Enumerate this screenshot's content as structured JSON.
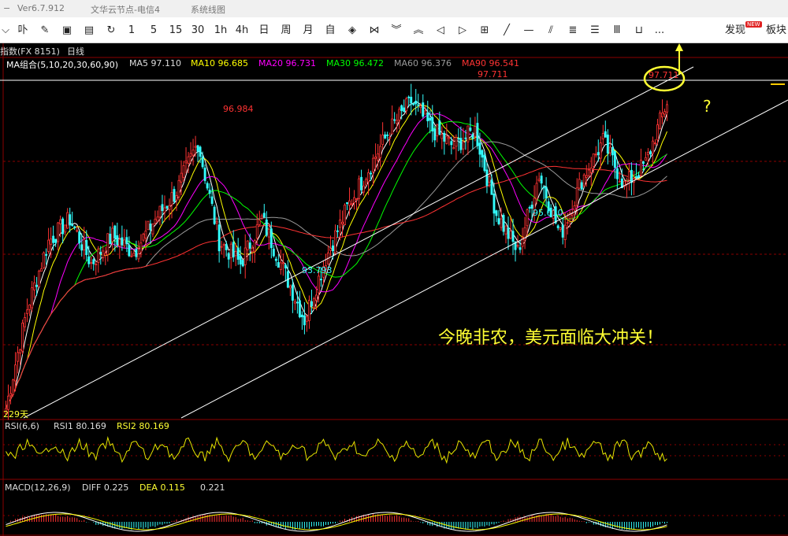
{
  "titlebar": {
    "version": "Ver6.7.912",
    "server": "文华云节点-电信4",
    "menu": "系统线图"
  },
  "toolbar": {
    "periods": [
      "1",
      "5",
      "15",
      "30",
      "1h",
      "4h",
      "日",
      "周",
      "月",
      "自"
    ],
    "discover": "发现",
    "new_badge": "NEW",
    "board": "板块",
    "more": "..."
  },
  "main_chart": {
    "symbol_label": "指数(FX 8151)",
    "period_label": "日线",
    "ma_title": "MA组合(5,10,20,30,60,90)",
    "ma": [
      {
        "label": "MA5",
        "value": "97.110",
        "color": "#ffffff"
      },
      {
        "label": "MA10",
        "value": "96.685",
        "color": "#ffff00"
      },
      {
        "label": "MA20",
        "value": "96.731",
        "color": "#ff00ff"
      },
      {
        "label": "MA30",
        "value": "96.472",
        "color": "#00ff00"
      },
      {
        "label": "MA60",
        "value": "96.376",
        "color": "#9a9a9a"
      },
      {
        "label": "MA90",
        "value": "96.541",
        "color": "#ff3333"
      }
    ],
    "annotations": {
      "high1": "96.984",
      "high2": "97.711",
      "low1": "93.793",
      "low2": "95.010",
      "last": "97.711",
      "days": "229天"
    },
    "headline": "今晚非农，美元面临大冲关！",
    "question_mark": "?"
  },
  "rsi": {
    "title": "RSI(6,6)",
    "rsi1": "RSI1 80.169",
    "rsi2": "RSI2 80.169"
  },
  "macd": {
    "title": "MACD(12,26,9)",
    "diff": "DIFF 0.225",
    "dea": "DEA 0.115",
    "macd": "0.221"
  },
  "colors": {
    "up": "#ff3333",
    "down": "#33ffff",
    "grid": "#8b0000",
    "yellow": "#ffff33"
  },
  "chart_data": {
    "type": "candlestick",
    "period": "daily",
    "y_range": [
      92.0,
      98.5
    ],
    "labeled_points": [
      {
        "label": "high",
        "value": 96.984
      },
      {
        "label": "low",
        "value": 93.793
      },
      {
        "label": "high",
        "value": 97.711
      },
      {
        "label": "low",
        "value": 95.01
      },
      {
        "label": "last",
        "value": 97.711
      }
    ],
    "price_path": [
      92.2,
      94.0,
      95.2,
      95.6,
      94.8,
      95.3,
      95.0,
      95.6,
      96.1,
      96.984,
      95.2,
      94.8,
      95.6,
      94.7,
      93.793,
      94.9,
      95.8,
      96.5,
      97.2,
      97.711,
      97.2,
      96.9,
      97.2,
      95.7,
      95.01,
      96.4,
      95.3,
      96.3,
      97.0,
      96.2,
      96.6,
      97.711
    ]
  }
}
